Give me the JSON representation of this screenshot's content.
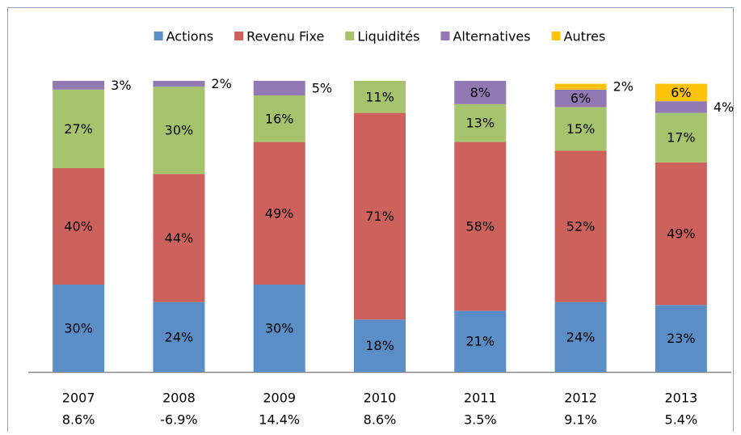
{
  "chart_data": {
    "type": "stacked_bar",
    "categories": [
      "2007",
      "2008",
      "2009",
      "2010",
      "2011",
      "2012",
      "2013"
    ],
    "category_sublabels": [
      "8.6%",
      "-6.9%",
      "14.4%",
      "8.6%",
      "3.5%",
      "9.1%",
      "5.4%"
    ],
    "ylim": [
      0,
      100
    ],
    "legend": "top",
    "series": [
      {
        "name": "Actions",
        "color": "#5b8ec6",
        "values": [
          30,
          24,
          30,
          18,
          21,
          24,
          23
        ],
        "value_labels": [
          "30%",
          "24%",
          "30%",
          "18%",
          "21%",
          "24%",
          "23%"
        ]
      },
      {
        "name": "Revenu Fixe",
        "color": "#cd625c",
        "values": [
          40,
          44,
          49,
          71,
          58,
          52,
          49
        ],
        "value_labels": [
          "40%",
          "44%",
          "49%",
          "71%",
          "58%",
          "52%",
          "49%"
        ]
      },
      {
        "name": "Liquidités",
        "color": "#a6c36d",
        "values": [
          27,
          30,
          16,
          11,
          13,
          15,
          17
        ],
        "value_labels": [
          "27%",
          "30%",
          "16%",
          "11%",
          "13%",
          "15%",
          "17%"
        ]
      },
      {
        "name": "Alternatives",
        "color": "#9379b3",
        "values": [
          3,
          2,
          5,
          null,
          8,
          6,
          4
        ],
        "value_labels": [
          "3%",
          "2%",
          "5%",
          null,
          "8%",
          "6%",
          "4%"
        ]
      },
      {
        "name": "Autres",
        "color": "#fdc20a",
        "values": [
          null,
          null,
          null,
          null,
          null,
          2,
          6
        ],
        "value_labels": [
          null,
          null,
          null,
          null,
          null,
          "2%",
          "6%"
        ]
      }
    ]
  }
}
